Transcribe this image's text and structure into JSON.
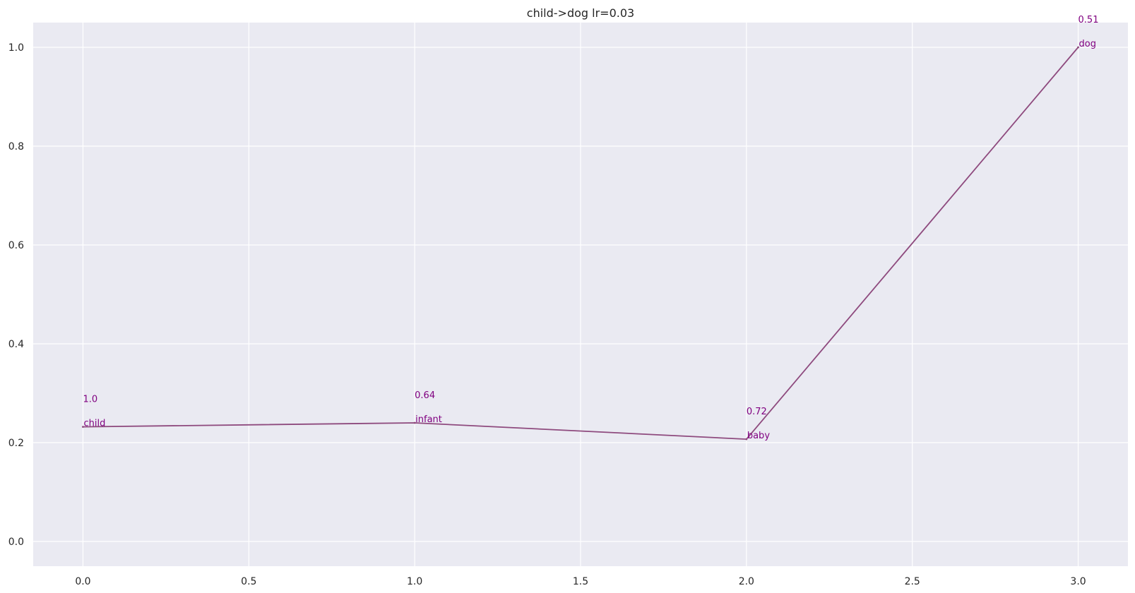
{
  "chart_data": {
    "type": "line",
    "title": "child->dog  lr=0.03",
    "xlabel": "",
    "ylabel": "",
    "xlim": [
      -0.15,
      3.15
    ],
    "ylim": [
      -0.05,
      1.05
    ],
    "xticks": [
      "0.0",
      "0.5",
      "1.0",
      "1.5",
      "2.0",
      "2.5",
      "3.0"
    ],
    "xtick_values": [
      0,
      0.5,
      1,
      1.5,
      2,
      2.5,
      3
    ],
    "yticks": [
      "0.0",
      "0.2",
      "0.4",
      "0.6",
      "0.8",
      "1.0"
    ],
    "ytick_values": [
      0,
      0.2,
      0.4,
      0.6,
      0.8,
      1.0
    ],
    "grid": true,
    "background_color": "#eaeaf2",
    "grid_color": "#ffffff",
    "line_color": "#8e4a7e",
    "label_color": "#800080",
    "series": [
      {
        "x": [
          0,
          1,
          2,
          3
        ],
        "y": [
          0.232,
          0.24,
          0.207,
          1.0
        ],
        "point_labels": [
          "child",
          "infant",
          "baby",
          "dog"
        ],
        "value_labels": [
          "1.0",
          "0.64",
          "0.72",
          "0.51"
        ]
      }
    ]
  }
}
